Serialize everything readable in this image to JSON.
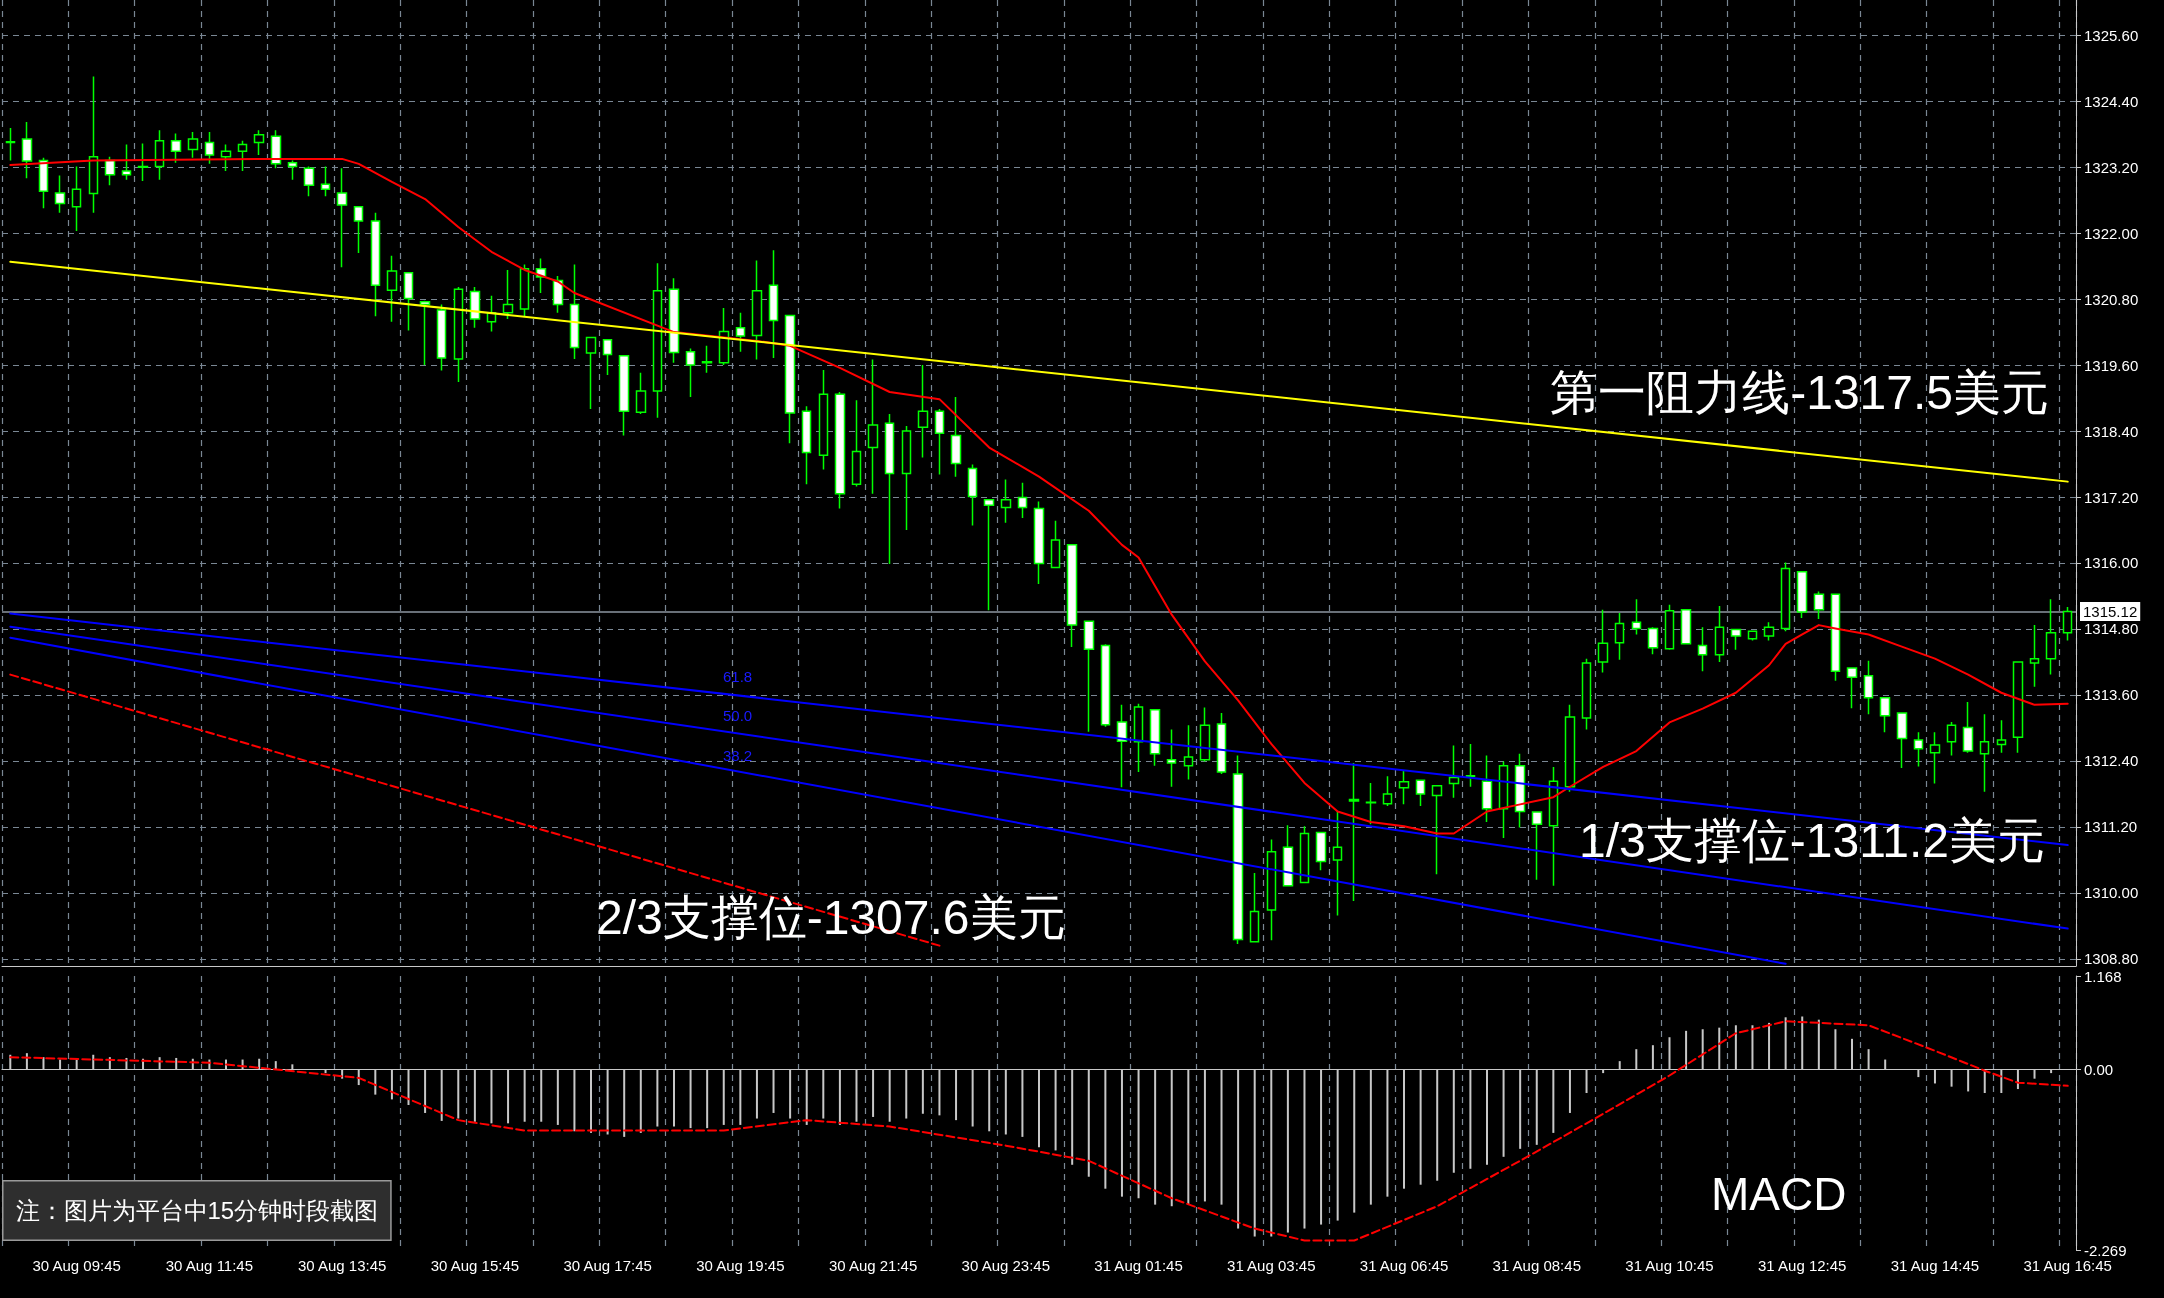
{
  "chart_data": [
    {
      "type": "candlestick",
      "categories": [
        null,
        null,
        null,
        null,
        null,
        null,
        null,
        null,
        null,
        null,
        null,
        null,
        null,
        null,
        null,
        null,
        null,
        null,
        null,
        null,
        null,
        null,
        null,
        null,
        null,
        null,
        null,
        null,
        null,
        null,
        null,
        null,
        null,
        null,
        null,
        null,
        null,
        null,
        null,
        null,
        null,
        null,
        null,
        null,
        null,
        null,
        null,
        null,
        null,
        null,
        null,
        null,
        null,
        null,
        null,
        null,
        null,
        null,
        null,
        null,
        null,
        null,
        null,
        null,
        null,
        null,
        null,
        null,
        null,
        null,
        null,
        null,
        null,
        null,
        null,
        null,
        null,
        null,
        null,
        null,
        null,
        null,
        null,
        null,
        null,
        null,
        null,
        null,
        null,
        null,
        null,
        null,
        null,
        null,
        null,
        null,
        null,
        null,
        null,
        null,
        null,
        null,
        null,
        null,
        null,
        null,
        null,
        null,
        null,
        null,
        null,
        null,
        null,
        null,
        null,
        null,
        null,
        null,
        null,
        null,
        null,
        null,
        null,
        null,
        null
      ],
      "color": "#00ff00",
      "ohlc": [
        [
          1323.65,
          1323.91,
          1323.32,
          1323.66
        ],
        [
          1323.71,
          1324.02,
          1323.0,
          1323.31
        ],
        [
          1323.32,
          1323.37,
          1322.45,
          1322.76
        ],
        [
          1322.73,
          1323.05,
          1322.37,
          1322.54
        ],
        [
          1322.48,
          1323.21,
          1322.04,
          1322.8
        ],
        [
          1322.72,
          1324.85,
          1322.37,
          1323.39
        ],
        [
          1323.32,
          1323.39,
          1322.87,
          1323.06
        ],
        [
          1323.13,
          1323.61,
          1322.97,
          1323.06
        ],
        [
          1323.2,
          1323.63,
          1322.95,
          1323.21
        ],
        [
          1323.21,
          1323.87,
          1322.97,
          1323.68
        ],
        [
          1323.68,
          1323.81,
          1323.28,
          1323.49
        ],
        [
          1323.52,
          1323.84,
          1323.37,
          1323.71
        ],
        [
          1323.65,
          1323.84,
          1323.26,
          1323.42
        ],
        [
          1323.39,
          1323.61,
          1323.13,
          1323.49
        ],
        [
          1323.49,
          1323.68,
          1323.13,
          1323.61
        ],
        [
          1323.65,
          1323.87,
          1323.42,
          1323.79
        ],
        [
          1323.76,
          1323.87,
          1323.18,
          1323.26
        ],
        [
          1323.28,
          1323.32,
          1322.97,
          1323.21
        ],
        [
          1323.18,
          1323.21,
          1322.67,
          1322.87
        ],
        [
          1322.89,
          1323.21,
          1322.67,
          1322.8
        ],
        [
          1322.73,
          1323.18,
          1321.38,
          1322.51
        ],
        [
          1322.48,
          1322.48,
          1321.64,
          1322.22
        ],
        [
          1322.22,
          1322.37,
          1320.49,
          1321.05
        ],
        [
          1320.96,
          1321.59,
          1320.39,
          1321.31
        ],
        [
          1321.28,
          1321.28,
          1320.23,
          1320.81
        ],
        [
          1320.75,
          1320.77,
          1319.6,
          1320.7
        ],
        [
          1320.6,
          1320.7,
          1319.5,
          1319.73
        ],
        [
          1319.71,
          1321.02,
          1319.29,
          1320.98
        ],
        [
          1320.94,
          1321.02,
          1320.28,
          1320.44
        ],
        [
          1320.39,
          1320.86,
          1320.21,
          1320.55
        ],
        [
          1320.55,
          1321.33,
          1320.44,
          1320.7
        ],
        [
          1320.62,
          1321.43,
          1320.49,
          1321.35
        ],
        [
          1321.35,
          1321.54,
          1320.91,
          1321.2
        ],
        [
          1321.14,
          1321.22,
          1320.55,
          1320.7
        ],
        [
          1320.7,
          1321.43,
          1319.71,
          1319.92
        ],
        [
          1319.82,
          1320.1,
          1318.8,
          1320.1
        ],
        [
          1320.06,
          1320.06,
          1319.42,
          1319.79
        ],
        [
          1319.77,
          1319.77,
          1318.32,
          1318.76
        ],
        [
          1318.74,
          1319.46,
          1318.71,
          1319.13
        ],
        [
          1319.13,
          1321.45,
          1318.64,
          1320.95
        ],
        [
          1320.98,
          1321.18,
          1319.64,
          1319.83
        ],
        [
          1319.84,
          1319.9,
          1319.02,
          1319.6
        ],
        [
          1319.64,
          1319.95,
          1319.46,
          1319.66
        ],
        [
          1319.64,
          1320.64,
          1319.6,
          1320.21
        ],
        [
          1320.28,
          1320.55,
          1319.84,
          1320.13
        ],
        [
          1320.14,
          1321.5,
          1319.7,
          1320.95
        ],
        [
          1321.05,
          1321.69,
          1319.73,
          1320.41
        ],
        [
          1320.5,
          1320.5,
          1318.18,
          1318.73
        ],
        [
          1318.76,
          1318.85,
          1317.43,
          1318.01
        ],
        [
          1317.96,
          1319.51,
          1317.7,
          1319.07
        ],
        [
          1319.07,
          1319.11,
          1316.99,
          1317.26
        ],
        [
          1317.43,
          1318.96,
          1317.39,
          1318.03
        ],
        [
          1318.1,
          1319.7,
          1317.26,
          1318.51
        ],
        [
          1318.54,
          1318.71,
          1315.98,
          1317.63
        ],
        [
          1317.63,
          1318.49,
          1316.6,
          1318.4
        ],
        [
          1318.47,
          1319.6,
          1317.92,
          1318.76
        ],
        [
          1318.76,
          1318.8,
          1317.61,
          1318.36
        ],
        [
          1318.32,
          1319.02,
          1317.57,
          1317.81
        ],
        [
          1317.72,
          1317.79,
          1316.68,
          1317.21
        ],
        [
          1317.15,
          1317.15,
          1315.14,
          1317.05
        ],
        [
          1317.01,
          1317.52,
          1316.73,
          1317.15
        ],
        [
          1317.19,
          1317.46,
          1316.82,
          1317.01
        ],
        [
          1316.99,
          1317.12,
          1315.62,
          1315.99
        ],
        [
          1315.92,
          1316.77,
          1315.92,
          1316.42
        ],
        [
          1316.33,
          1316.33,
          1314.47,
          1314.87
        ],
        [
          1314.94,
          1314.94,
          1312.93,
          1314.43
        ],
        [
          1314.5,
          1314.52,
          1313.02,
          1313.06
        ],
        [
          1313.11,
          1313.42,
          1311.92,
          1312.76
        ],
        [
          1312.75,
          1313.44,
          1312.2,
          1313.38
        ],
        [
          1313.33,
          1313.33,
          1312.31,
          1312.53
        ],
        [
          1312.42,
          1312.97,
          1311.93,
          1312.36
        ],
        [
          1312.31,
          1313.05,
          1312.06,
          1312.47
        ],
        [
          1312.42,
          1313.37,
          1312.39,
          1313.05
        ],
        [
          1313.07,
          1313.27,
          1312.16,
          1312.2
        ],
        [
          1312.16,
          1312.5,
          1309.07,
          1309.15
        ],
        [
          1309.11,
          1310.36,
          1309.11,
          1309.66
        ],
        [
          1309.69,
          1310.97,
          1309.14,
          1310.75
        ],
        [
          1310.83,
          1311.23,
          1310.13,
          1310.13
        ],
        [
          1310.19,
          1311.21,
          1310.19,
          1311.08
        ],
        [
          1311.1,
          1311.1,
          1310.41,
          1310.57
        ],
        [
          1310.6,
          1311.48,
          1309.59,
          1310.83
        ],
        [
          1311.67,
          1312.36,
          1309.85,
          1311.7
        ],
        [
          1311.64,
          1312.0,
          1311.25,
          1311.65
        ],
        [
          1311.62,
          1312.12,
          1311.58,
          1311.8
        ],
        [
          1311.91,
          1312.23,
          1311.61,
          1312.02
        ],
        [
          1312.05,
          1312.05,
          1311.58,
          1311.8
        ],
        [
          1311.77,
          1311.95,
          1310.34,
          1311.95
        ],
        [
          1311.99,
          1312.68,
          1311.73,
          1312.1
        ],
        [
          1312.12,
          1312.71,
          1311.93,
          1312.13
        ],
        [
          1312.03,
          1312.5,
          1311.29,
          1311.53
        ],
        [
          1311.53,
          1312.39,
          1311.0,
          1312.31
        ],
        [
          1312.31,
          1312.53,
          1311.19,
          1311.48
        ],
        [
          1311.47,
          1311.47,
          1310.24,
          1311.25
        ],
        [
          1311.22,
          1312.29,
          1310.13,
          1312.03
        ],
        [
          1311.93,
          1313.42,
          1311.84,
          1313.2
        ],
        [
          1313.18,
          1314.26,
          1312.97,
          1314.18
        ],
        [
          1314.2,
          1315.15,
          1314.01,
          1314.54
        ],
        [
          1314.55,
          1315.09,
          1314.24,
          1314.9
        ],
        [
          1314.92,
          1315.34,
          1314.7,
          1314.81
        ],
        [
          1314.81,
          1314.83,
          1314.34,
          1314.46
        ],
        [
          1314.44,
          1315.24,
          1314.42,
          1315.13
        ],
        [
          1315.15,
          1315.15,
          1314.53,
          1314.53
        ],
        [
          1314.5,
          1314.83,
          1314.03,
          1314.33
        ],
        [
          1314.33,
          1315.22,
          1314.2,
          1314.83
        ],
        [
          1314.79,
          1314.79,
          1314.42,
          1314.67
        ],
        [
          1314.62,
          1314.76,
          1314.59,
          1314.76
        ],
        [
          1314.67,
          1314.92,
          1314.59,
          1314.83
        ],
        [
          1314.81,
          1316.01,
          1314.76,
          1315.9
        ],
        [
          1315.84,
          1315.84,
          1315.0,
          1315.11
        ],
        [
          1315.43,
          1315.48,
          1314.98,
          1315.15
        ],
        [
          1315.43,
          1315.43,
          1313.86,
          1314.03
        ],
        [
          1314.09,
          1314.09,
          1313.36,
          1313.92
        ],
        [
          1313.95,
          1314.22,
          1313.25,
          1313.55
        ],
        [
          1313.55,
          1313.55,
          1312.92,
          1313.22
        ],
        [
          1313.27,
          1313.27,
          1312.27,
          1312.81
        ],
        [
          1312.78,
          1312.92,
          1312.3,
          1312.62
        ],
        [
          1312.55,
          1312.92,
          1311.99,
          1312.69
        ],
        [
          1312.75,
          1313.11,
          1312.5,
          1313.05
        ],
        [
          1313.01,
          1313.47,
          1312.55,
          1312.58
        ],
        [
          1312.53,
          1313.25,
          1311.84,
          1312.75
        ],
        [
          1312.7,
          1313.14,
          1312.55,
          1312.78
        ],
        [
          1312.83,
          1314.2,
          1312.55,
          1314.2
        ],
        [
          1314.18,
          1314.87,
          1313.75,
          1314.26
        ],
        [
          1314.26,
          1315.34,
          1313.97,
          1314.73
        ],
        [
          1314.73,
          1315.2,
          1314.59,
          1315.12
        ]
      ],
      "series": [
        {
          "type": "line",
          "color": "#ff0000",
          "values": [
            1323.24,
            null,
            null,
            null,
            null,
            1323.32,
            null,
            null,
            null,
            null,
            null,
            null,
            null,
            null,
            null,
            1323.35,
            null,
            null,
            null,
            null,
            1323.35,
            1323.26,
            null,
            1322.93,
            null,
            1322.62,
            null,
            1322.11,
            null,
            1321.66,
            null,
            1321.33,
            null,
            1321.12,
            1320.91,
            null,
            null,
            null,
            null,
            null,
            1320.2,
            null,
            null,
            null,
            null,
            1320.04,
            null,
            1319.95,
            null,
            null,
            1319.55,
            null,
            null,
            1319.11,
            null,
            null,
            1318.98,
            null,
            null,
            1318.1,
            null,
            null,
            1317.57,
            null,
            null,
            1316.95,
            null,
            1316.33,
            1316.1,
            null,
            1315.06,
            null,
            1314.21,
            null,
            1313.5,
            null,
            1312.71,
            null,
            1312.0,
            null,
            1311.48,
            null,
            1311.29,
            null,
            1311.21,
            null,
            1311.08,
            1311.08,
            null,
            1311.48,
            null,
            1311.61,
            null,
            1311.74,
            1311.93,
            null,
            1312.29,
            null,
            1312.58,
            null,
            1313.1,
            null,
            1313.35,
            null,
            1313.64,
            null,
            1314.14,
            1314.53,
            1314.7,
            1314.87,
            1314.81,
            null,
            1314.7,
            null,
            1314.48,
            null,
            1314.26,
            null,
            1313.97,
            null,
            1313.64,
            null,
            1313.42,
            null,
            1313.44
          ]
        },
        {
          "type": "line",
          "color": "#ffff00",
          "values": [
            1321.48,
            null,
            null,
            null,
            null,
            null,
            null,
            null,
            null,
            null,
            null,
            null,
            null,
            null,
            null,
            null,
            null,
            null,
            null,
            null,
            null,
            null,
            null,
            null,
            null,
            null,
            null,
            null,
            null,
            null,
            null,
            null,
            null,
            null,
            null,
            null,
            null,
            null,
            null,
            null,
            null,
            null,
            null,
            null,
            null,
            null,
            null,
            null,
            null,
            null,
            null,
            null,
            null,
            null,
            null,
            null,
            null,
            null,
            null,
            null,
            null,
            null,
            null,
            null,
            null,
            null,
            null,
            null,
            null,
            null,
            null,
            null,
            null,
            null,
            null,
            null,
            null,
            null,
            null,
            null,
            null,
            null,
            null,
            null,
            null,
            null,
            null,
            null,
            null,
            null,
            null,
            null,
            null,
            null,
            null,
            null,
            null,
            null,
            null,
            null,
            null,
            null,
            null,
            null,
            null,
            null,
            null,
            null,
            null,
            null,
            null,
            null,
            null,
            null,
            null,
            null,
            null,
            null,
            null,
            null,
            null,
            null,
            null,
            null,
            1317.48
          ]
        },
        {
          "type": "line",
          "color": "#0000ff",
          "values": [
            1315.08,
            null,
            null,
            null,
            null,
            null,
            null,
            null,
            null,
            null,
            null,
            null,
            null,
            null,
            null,
            null,
            null,
            null,
            null,
            null,
            null,
            null,
            null,
            null,
            null,
            null,
            null,
            null,
            null,
            null,
            null,
            null,
            null,
            null,
            null,
            null,
            null,
            null,
            null,
            null,
            null,
            null,
            null,
            null,
            null,
            null,
            null,
            null,
            null,
            null,
            null,
            null,
            null,
            null,
            null,
            null,
            null,
            null,
            null,
            null,
            null,
            null,
            null,
            null,
            null,
            null,
            null,
            null,
            null,
            null,
            null,
            null,
            null,
            null,
            null,
            null,
            null,
            null,
            null,
            null,
            null,
            null,
            null,
            null,
            null,
            null,
            null,
            null,
            null,
            null,
            null,
            null,
            null,
            null,
            null,
            null,
            null,
            null,
            null,
            null,
            null,
            null,
            null,
            null,
            null,
            null,
            null,
            null,
            null,
            null,
            null,
            null,
            null,
            null,
            null,
            null,
            null,
            null,
            null,
            null,
            null,
            null,
            null,
            null,
            1310.87
          ]
        },
        {
          "type": "line",
          "color": "#0000ff",
          "values": [
            1314.84,
            null,
            null,
            null,
            null,
            null,
            null,
            null,
            null,
            null,
            null,
            null,
            null,
            null,
            null,
            null,
            null,
            null,
            null,
            null,
            null,
            null,
            null,
            null,
            null,
            null,
            null,
            null,
            null,
            null,
            null,
            null,
            null,
            null,
            null,
            null,
            null,
            null,
            null,
            null,
            null,
            null,
            null,
            null,
            null,
            null,
            null,
            null,
            null,
            null,
            null,
            null,
            null,
            null,
            null,
            null,
            null,
            null,
            null,
            null,
            null,
            null,
            null,
            null,
            null,
            null,
            null,
            null,
            null,
            null,
            null,
            null,
            null,
            null,
            null,
            null,
            null,
            null,
            null,
            null,
            null,
            null,
            null,
            null,
            null,
            null,
            null,
            null,
            null,
            null,
            null,
            null,
            null,
            null,
            null,
            null,
            null,
            null,
            null,
            null,
            null,
            null,
            null,
            null,
            null,
            null,
            null,
            null,
            null,
            null,
            null,
            null,
            null,
            null,
            null,
            null,
            null,
            null,
            null,
            null,
            null,
            null,
            null,
            null,
            1309.35
          ]
        },
        {
          "type": "line",
          "color": "#0000ff",
          "values": [
            1314.64,
            null,
            null,
            null,
            null,
            null,
            null,
            null,
            null,
            null,
            null,
            null,
            null,
            null,
            null,
            null,
            null,
            null,
            null,
            null,
            null,
            null,
            null,
            null,
            null,
            null,
            null,
            null,
            null,
            null,
            null,
            null,
            null,
            null,
            null,
            null,
            null,
            null,
            null,
            null,
            null,
            null,
            null,
            null,
            null,
            null,
            null,
            null,
            null,
            null,
            null,
            null,
            null,
            null,
            null,
            null,
            null,
            null,
            null,
            null,
            null,
            null,
            null,
            null,
            null,
            null,
            null,
            null,
            null,
            null,
            null,
            null,
            null,
            null,
            null,
            null,
            null,
            null,
            null,
            null,
            null,
            null,
            null,
            null,
            null,
            null,
            null,
            null,
            null,
            null,
            null,
            null,
            null,
            null,
            null,
            null,
            null,
            null,
            null,
            null,
            null,
            null,
            null,
            null,
            null,
            null,
            null,
            1308.71,
            null,
            null,
            null,
            null,
            null,
            null,
            null,
            null,
            null,
            null,
            null,
            null,
            null,
            null,
            null,
            null,
            null
          ]
        },
        {
          "type": "line",
          "color": "#ff0000",
          "line_style": "dashed",
          "values": [
            1313.97,
            null,
            null,
            null,
            null,
            null,
            null,
            null,
            null,
            null,
            null,
            null,
            null,
            null,
            null,
            null,
            null,
            null,
            null,
            null,
            null,
            null,
            null,
            null,
            null,
            null,
            null,
            null,
            null,
            null,
            null,
            null,
            null,
            null,
            null,
            null,
            null,
            null,
            null,
            null,
            null,
            null,
            null,
            null,
            null,
            null,
            null,
            null,
            null,
            null,
            null,
            null,
            null,
            null,
            null,
            null,
            1309.04,
            null,
            null,
            null,
            null,
            null,
            null,
            null,
            null,
            null,
            null,
            null,
            null,
            null,
            null,
            null,
            null,
            null,
            null,
            null,
            null,
            null,
            null,
            null,
            null,
            null,
            null,
            null,
            null,
            null,
            null,
            null,
            null,
            null,
            null,
            null,
            null,
            null,
            null,
            null,
            null,
            null,
            null,
            null,
            null,
            null,
            null,
            null,
            null,
            null,
            null,
            null,
            null,
            null,
            null,
            null,
            null,
            null,
            null,
            null,
            null,
            null,
            null,
            null,
            null,
            null,
            null,
            null,
            null
          ]
        }
      ],
      "ylim": [
        1308.67,
        1326.24
      ],
      "yticks": [
        {
          "value": 1308.8,
          "label": "1308.80"
        },
        {
          "value": 1310.0,
          "label": "1310.00"
        },
        {
          "value": 1311.2,
          "label": "1311.20"
        },
        {
          "value": 1312.4,
          "label": "1312.40"
        },
        {
          "value": 1313.6,
          "label": "1313.60"
        },
        {
          "value": 1314.8,
          "label": "1314.80"
        },
        {
          "value": 1316.0,
          "label": "1316.00"
        },
        {
          "value": 1317.2,
          "label": "1317.20"
        },
        {
          "value": 1318.4,
          "label": "1318.40"
        },
        {
          "value": 1319.6,
          "label": "1319.60"
        },
        {
          "value": 1320.8,
          "label": "1320.80"
        },
        {
          "value": 1322.0,
          "label": "1322.00"
        },
        {
          "value": 1323.2,
          "label": "1323.20"
        },
        {
          "value": 1324.4,
          "label": "1324.40"
        },
        {
          "value": 1325.6,
          "label": "1325.60"
        }
      ],
      "ref_lines": [
        {
          "axis": "y",
          "value": 1315.12,
          "label": "1315.12",
          "color": "#8c96a0"
        }
      ],
      "annotations": [
        "第一阻力线-1317.5美元",
        "1/3支撑位-1311.2美元",
        "2/3支撑位-1307.6美元",
        "61.8",
        "50.0",
        "38.2"
      ],
      "grid": true,
      "tick_labels": "y"
    },
    {
      "type": "bar",
      "categories": [
        null,
        null,
        null,
        null,
        "30 Aug 09:45",
        null,
        null,
        null,
        null,
        null,
        null,
        null,
        "30 Aug 11:45",
        null,
        null,
        null,
        null,
        null,
        null,
        null,
        "30 Aug 13:45",
        null,
        null,
        null,
        null,
        null,
        null,
        null,
        "30 Aug 15:45",
        null,
        null,
        null,
        null,
        null,
        null,
        null,
        "30 Aug 17:45",
        null,
        null,
        null,
        null,
        null,
        null,
        null,
        "30 Aug 19:45",
        null,
        null,
        null,
        null,
        null,
        null,
        null,
        "30 Aug 21:45",
        null,
        null,
        null,
        null,
        null,
        null,
        null,
        "30 Aug 23:45",
        null,
        null,
        null,
        null,
        null,
        null,
        null,
        "31 Aug 01:45",
        null,
        null,
        null,
        null,
        null,
        null,
        null,
        "31 Aug 03:45",
        null,
        null,
        null,
        null,
        null,
        null,
        null,
        "31 Aug 06:45",
        null,
        null,
        null,
        null,
        null,
        null,
        null,
        "31 Aug 08:45",
        null,
        null,
        null,
        null,
        null,
        null,
        null,
        "31 Aug 10:45",
        null,
        null,
        null,
        null,
        null,
        null,
        null,
        "31 Aug 12:45",
        null,
        null,
        null,
        null,
        null,
        null,
        null,
        "31 Aug 14:45",
        null,
        null,
        null,
        null,
        null,
        null,
        null,
        "31 Aug 16:45"
      ],
      "series": [
        {
          "type": "bar",
          "color": "#c8c8c8",
          "values": [
            0.18,
            0.2,
            0.15,
            0.12,
            0.12,
            0.18,
            0.15,
            0.14,
            0.13,
            0.15,
            0.14,
            0.13,
            0.12,
            0.12,
            0.12,
            0.13,
            0.1,
            0.06,
            0.0,
            -0.05,
            -0.12,
            -0.2,
            -0.32,
            -0.38,
            -0.45,
            -0.55,
            -0.65,
            -0.62,
            -0.66,
            -0.68,
            -0.68,
            -0.66,
            -0.66,
            -0.7,
            -0.78,
            -0.8,
            -0.82,
            -0.85,
            -0.8,
            -0.72,
            -0.72,
            -0.74,
            -0.74,
            -0.7,
            -0.7,
            -0.62,
            -0.55,
            -0.62,
            -0.7,
            -0.62,
            -0.7,
            -0.66,
            -0.6,
            -0.66,
            -0.62,
            -0.56,
            -0.58,
            -0.64,
            -0.72,
            -0.78,
            -0.82,
            -0.85,
            -0.98,
            -1.02,
            -1.2,
            -1.35,
            -1.5,
            -1.6,
            -1.62,
            -1.7,
            -1.72,
            -1.7,
            -1.66,
            -1.7,
            -2.0,
            -2.1,
            -2.1,
            -2.05,
            -2.0,
            -1.95,
            -1.9,
            -1.8,
            -1.7,
            -1.6,
            -1.5,
            -1.45,
            -1.4,
            -1.3,
            -1.25,
            -1.2,
            -1.1,
            -1.0,
            -0.95,
            -0.8,
            -0.55,
            -0.3,
            -0.05,
            0.1,
            0.25,
            0.3,
            0.4,
            0.48,
            0.5,
            0.52,
            0.55,
            0.55,
            0.58,
            0.65,
            0.66,
            0.62,
            0.5,
            0.38,
            0.25,
            0.12,
            0.0,
            -0.1,
            -0.18,
            -0.22,
            -0.28,
            -0.3,
            -0.3,
            -0.25,
            -0.12,
            -0.05,
            0.0
          ]
        },
        {
          "type": "line",
          "color": "#ff0000",
          "line_style": "dashed",
          "values": [
            0.15,
            null,
            null,
            null,
            null,
            null,
            null,
            null,
            null,
            null,
            null,
            null,
            0.08,
            null,
            null,
            null,
            null,
            null,
            null,
            null,
            null,
            -0.11,
            null,
            null,
            null,
            null,
            null,
            -0.64,
            null,
            null,
            null,
            -0.77,
            null,
            null,
            null,
            null,
            null,
            null,
            null,
            null,
            null,
            null,
            null,
            -0.77,
            null,
            null,
            null,
            null,
            -0.64,
            null,
            null,
            null,
            null,
            -0.72,
            null,
            null,
            null,
            null,
            null,
            null,
            -0.96,
            null,
            null,
            null,
            null,
            -1.15,
            null,
            null,
            null,
            null,
            -1.62,
            null,
            null,
            null,
            null,
            -2.0,
            null,
            null,
            -2.15,
            null,
            null,
            -2.15,
            null,
            null,
            null,
            null,
            -1.72,
            null,
            null,
            null,
            null,
            -1.15,
            null,
            null,
            null,
            -0.68,
            null,
            null,
            null,
            null,
            -0.08,
            null,
            null,
            null,
            0.45,
            null,
            null,
            0.6,
            null,
            null,
            null,
            null,
            0.55,
            null,
            null,
            null,
            0.23,
            null,
            null,
            -0.02,
            null,
            -0.17,
            null,
            null,
            -0.21
          ]
        }
      ],
      "ylim": [
        -2.269,
        1.168
      ],
      "yticks": [
        {
          "value": -2.269,
          "label": "-2.269"
        },
        {
          "value": 0,
          "label": "0.00"
        },
        {
          "value": 1.168,
          "label": "1.168"
        }
      ],
      "annotations": [
        "注：图片为平台中15分钟时段截图",
        "MACD"
      ],
      "grid": "x"
    }
  ]
}
